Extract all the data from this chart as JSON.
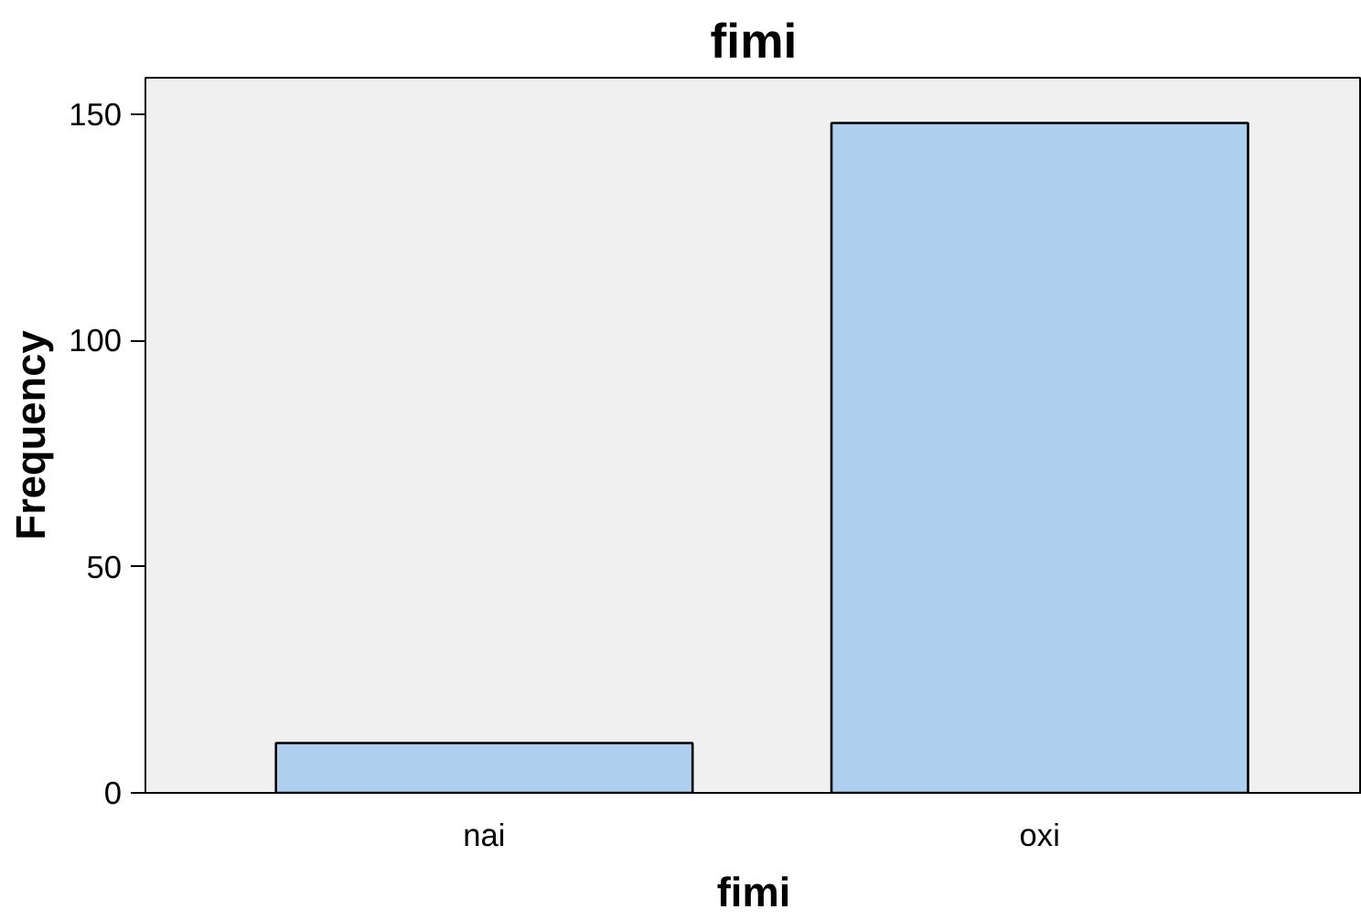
{
  "chart_data": {
    "type": "bar",
    "title": "fimi",
    "xlabel": "fimi",
    "ylabel": "Frequency",
    "categories": [
      "nai",
      "oxi"
    ],
    "values": [
      11,
      148
    ],
    "color": "#aed0ee",
    "ylim": [
      0,
      158
    ],
    "yticks": [
      0,
      50,
      100,
      150
    ],
    "grid": false
  }
}
